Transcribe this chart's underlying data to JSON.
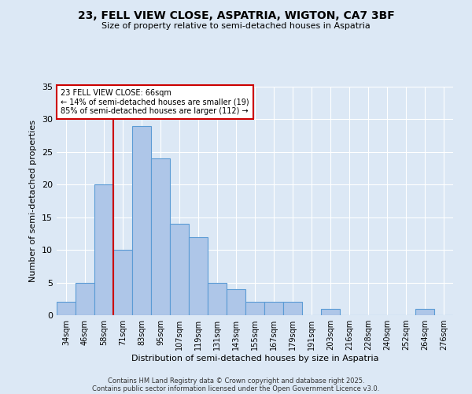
{
  "title_line1": "23, FELL VIEW CLOSE, ASPATRIA, WIGTON, CA7 3BF",
  "title_line2": "Size of property relative to semi-detached houses in Aspatria",
  "xlabel": "Distribution of semi-detached houses by size in Aspatria",
  "ylabel": "Number of semi-detached properties",
  "bin_labels": [
    "34sqm",
    "46sqm",
    "58sqm",
    "71sqm",
    "83sqm",
    "95sqm",
    "107sqm",
    "119sqm",
    "131sqm",
    "143sqm",
    "155sqm",
    "167sqm",
    "179sqm",
    "191sqm",
    "203sqm",
    "216sqm",
    "228sqm",
    "240sqm",
    "252sqm",
    "264sqm",
    "276sqm"
  ],
  "values": [
    2,
    5,
    20,
    10,
    29,
    24,
    14,
    12,
    5,
    4,
    2,
    2,
    2,
    0,
    1,
    0,
    0,
    0,
    0,
    1,
    0
  ],
  "bar_color": "#aec6e8",
  "bar_edge_color": "#5b9bd5",
  "annotation_text": "23 FELL VIEW CLOSE: 66sqm\n← 14% of semi-detached houses are smaller (19)\n85% of semi-detached houses are larger (112) →",
  "annotation_box_color": "#ffffff",
  "annotation_box_edge": "#cc0000",
  "ylim": [
    0,
    35
  ],
  "yticks": [
    0,
    5,
    10,
    15,
    20,
    25,
    30,
    35
  ],
  "footer_line1": "Contains HM Land Registry data © Crown copyright and database right 2025.",
  "footer_line2": "Contains public sector information licensed under the Open Government Licence v3.0.",
  "background_color": "#dce8f5",
  "grid_color": "#ffffff",
  "red_line_color": "#cc0000"
}
